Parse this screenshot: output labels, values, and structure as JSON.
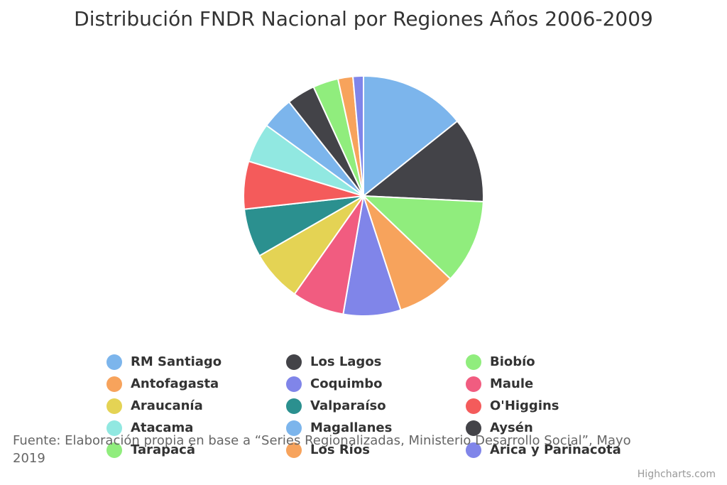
{
  "title": "Distribución FNDR Nacional por Regiones Años 2006-2009",
  "chart_data": {
    "type": "pie",
    "title": "Distribución FNDR Nacional por Regiones Años 2006-2009",
    "legend_position": "bottom",
    "categories": [
      "RM Santiago",
      "Los Lagos",
      "Biobío",
      "Antofagasta",
      "Coquimbo",
      "Maule",
      "Araucanía",
      "Valparaíso",
      "O'Higgins",
      "Atacama",
      "Magallanes",
      "Aysén",
      "Tarapacá",
      "Los Ríos",
      "Arica y Parinacota"
    ],
    "values": [
      14.2,
      11.4,
      11.3,
      7.8,
      7.7,
      7.0,
      6.9,
      6.5,
      6.4,
      5.3,
      4.3,
      3.8,
      3.4,
      2.0,
      1.4
    ],
    "colors": [
      "#7cb5ec",
      "#434348",
      "#90ed7d",
      "#f7a35c",
      "#8085e9",
      "#f15c80",
      "#e4d354",
      "#2b908f",
      "#f45b5b",
      "#91e8e1",
      "#7cb5ec",
      "#434348",
      "#90ed7d",
      "#f7a35c",
      "#8085e9"
    ]
  },
  "source_note": "Fuente: Elaboración propia en base a “Series Regionalizadas, Ministerio Desarrollo Social”, Mayo 2019",
  "credits": "Highcharts.com"
}
